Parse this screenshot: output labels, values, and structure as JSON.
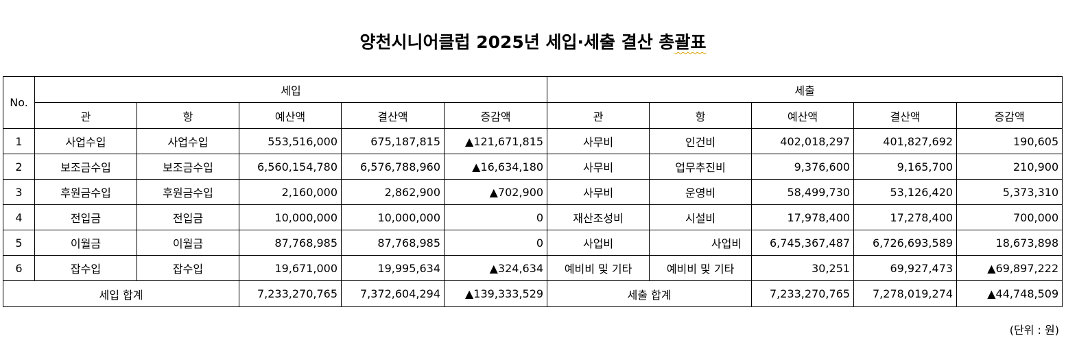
{
  "title_main": "양천시니어클럽 2025년 세입·세출 결산 총",
  "title_tail": "괄표",
  "headers": {
    "no": "No.",
    "income_group": "세입",
    "expense_group": "세출",
    "gwan": "관",
    "hang": "항",
    "budget": "예산액",
    "settled": "결산액",
    "diff": "증감액"
  },
  "rows": [
    {
      "no": "1",
      "in_gwan": "사업수입",
      "in_hang": "사업수입",
      "in_budget": "553,516,000",
      "in_settled": "675,187,815",
      "in_diff": "▲121,671,815",
      "ex_gwan": "사무비",
      "ex_hang": "인건비",
      "ex_budget": "402,018,297",
      "ex_settled": "401,827,692",
      "ex_diff": "190,605"
    },
    {
      "no": "2",
      "in_gwan": "보조금수입",
      "in_hang": "보조금수입",
      "in_budget": "6,560,154,780",
      "in_settled": "6,576,788,960",
      "in_diff": "▲16,634,180",
      "ex_gwan": "사무비",
      "ex_hang": "업무추진비",
      "ex_budget": "9,376,600",
      "ex_settled": "9,165,700",
      "ex_diff": "210,900"
    },
    {
      "no": "3",
      "in_gwan": "후원금수입",
      "in_hang": "후원금수입",
      "in_budget": "2,160,000",
      "in_settled": "2,862,900",
      "in_diff": "▲702,900",
      "ex_gwan": "사무비",
      "ex_hang": "운영비",
      "ex_budget": "58,499,730",
      "ex_settled": "53,126,420",
      "ex_diff": "5,373,310"
    },
    {
      "no": "4",
      "in_gwan": "전입금",
      "in_hang": "전입금",
      "in_budget": "10,000,000",
      "in_settled": "10,000,000",
      "in_diff": "0",
      "ex_gwan": "재산조성비",
      "ex_hang": "시설비",
      "ex_budget": "17,978,400",
      "ex_settled": "17,278,400",
      "ex_diff": "700,000"
    },
    {
      "no": "5",
      "in_gwan": "이월금",
      "in_hang": "이월금",
      "in_budget": "87,768,985",
      "in_settled": "87,768,985",
      "in_diff": "0",
      "ex_gwan": "사업비",
      "ex_hang": "사업비",
      "ex_budget": "6,745,367,487",
      "ex_settled": "6,726,693,589",
      "ex_diff": "18,673,898"
    },
    {
      "no": "6",
      "in_gwan": "잡수입",
      "in_hang": "잡수입",
      "in_budget": "19,671,000",
      "in_settled": "19,995,634",
      "in_diff": "▲324,634",
      "ex_gwan": "예비비 및 기타",
      "ex_hang": "예비비 및 기타",
      "ex_budget": "30,251",
      "ex_settled": "69,927,473",
      "ex_diff": "▲69,897,222"
    }
  ],
  "totals": {
    "in_label": "세입 합계",
    "in_budget": "7,233,270,765",
    "in_settled": "7,372,604,294",
    "in_diff": "▲139,333,529",
    "ex_label": "세출 합계",
    "ex_budget": "7,233,270,765",
    "ex_settled": "7,278,019,274",
    "ex_diff": "▲44,748,509"
  },
  "unit_note": "(단위 : 원)"
}
